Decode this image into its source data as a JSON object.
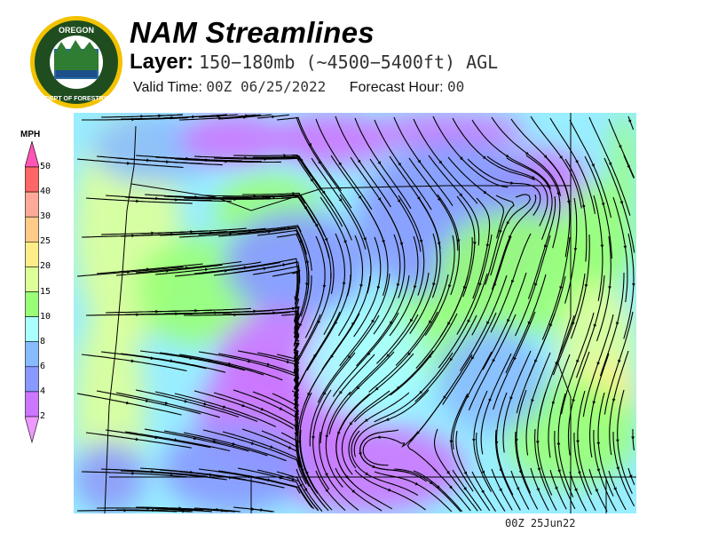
{
  "header": {
    "title": "NAM Streamlines",
    "layer_label": "Layer:",
    "layer_value": "150−180mb (~4500−5400ft) AGL",
    "valid_time_label": "Valid Time:",
    "valid_time_value": "00Z 06/25/2022",
    "forecast_hour_label": "Forecast Hour:",
    "forecast_hour_value": "00"
  },
  "logo": {
    "text_top": "OREGON",
    "text_bottom": "DEPARTMENT OF FORESTRY"
  },
  "colorbar": {
    "unit": "MPH",
    "labels": [
      "50",
      "40",
      "30",
      "25",
      "20",
      "15",
      "10",
      "8",
      "6",
      "4",
      "2"
    ],
    "top_extend_color": "#ff55b4",
    "colors": [
      "#ff6666",
      "#ffaa99",
      "#ffcc88",
      "#ffee88",
      "#ddff99",
      "#99ff77",
      "#aaffff",
      "#88bbff",
      "#8899ff",
      "#cc77ff"
    ],
    "bottom_extend_color": "#ee99ff"
  },
  "footer": {
    "stamp": "00Z 25Jun22"
  }
}
